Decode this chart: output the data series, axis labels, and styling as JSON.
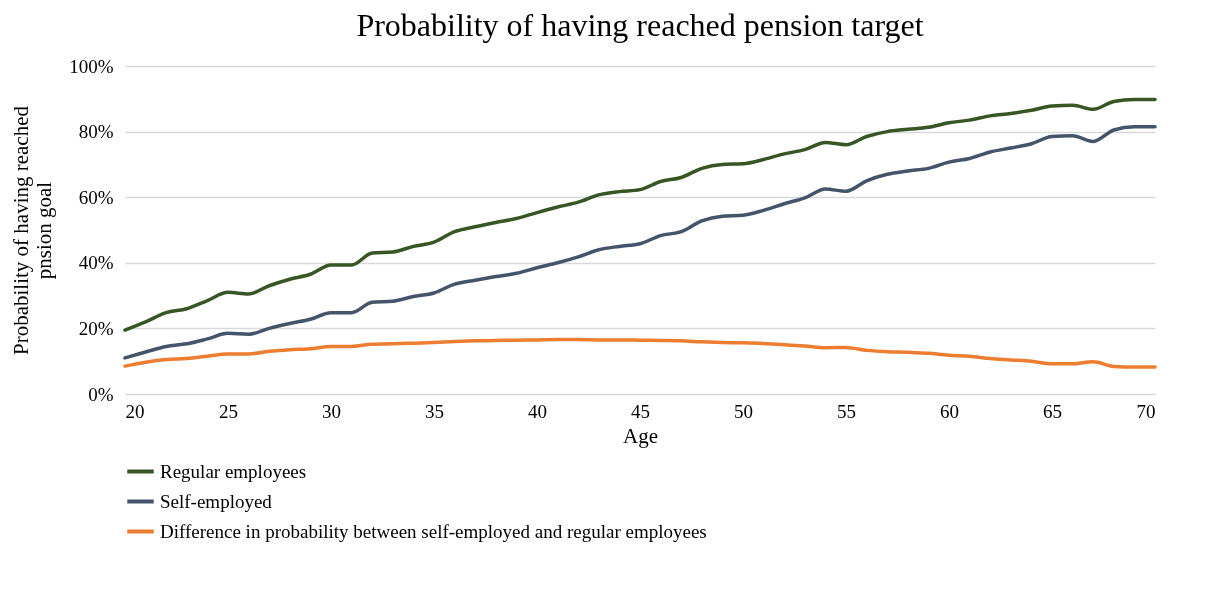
{
  "chart_data": {
    "type": "line",
    "title": "Probability of having reached pension target",
    "xlabel": "Age",
    "ylabel": "Probability of having reached pnsion goal",
    "x": [
      20,
      21,
      22,
      23,
      24,
      25,
      26,
      27,
      28,
      29,
      30,
      31,
      32,
      33,
      34,
      35,
      36,
      37,
      38,
      39,
      40,
      41,
      42,
      43,
      44,
      45,
      46,
      47,
      48,
      49,
      50,
      51,
      52,
      53,
      54,
      55,
      56,
      57,
      58,
      59,
      60,
      61,
      62,
      63,
      64,
      65,
      66,
      67,
      68,
      69,
      70
    ],
    "series": [
      {
        "name": "Regular employees",
        "color": "#375623",
        "values": [
          19.5,
          22,
          24.8,
          26,
          28.5,
          31,
          30.5,
          33,
          35,
          36.5,
          39.3,
          39.3,
          43,
          43.3,
          45,
          46.3,
          49.5,
          51,
          52.3,
          53.5,
          55.3,
          57,
          58.5,
          60.7,
          61.7,
          62.3,
          64.8,
          66,
          68.8,
          70,
          70.2,
          71.5,
          73.2,
          74.5,
          76.7,
          76,
          78.5,
          80,
          80.7,
          81.3,
          82.7,
          83.5,
          84.8,
          85.5,
          86.5,
          87.8,
          88,
          86.8,
          89.2,
          89.8,
          89.8
        ]
      },
      {
        "name": "Self-employed",
        "color": "#44546a",
        "values": [
          11,
          12.8,
          14.5,
          15.3,
          16.8,
          18.5,
          18.2,
          20,
          21.5,
          22.8,
          24.8,
          24.8,
          28,
          28.3,
          29.7,
          30.8,
          33.5,
          34.7,
          35.8,
          36.8,
          38.5,
          40,
          41.8,
          44,
          45,
          45.8,
          48.3,
          49.5,
          52.8,
          54.2,
          54.5,
          56,
          58,
          59.8,
          62.5,
          61.8,
          65,
          67,
          68,
          68.8,
          70.7,
          71.8,
          73.8,
          75,
          76.3,
          78.5,
          78.7,
          77,
          80.5,
          81.5,
          81.5
        ]
      },
      {
        "name": "Difference in probability between self-employed and regular employees",
        "color": "#ed7d31",
        "values": [
          8.5,
          9.7,
          10.5,
          10.8,
          11.5,
          12.2,
          12.2,
          13,
          13.5,
          13.8,
          14.5,
          14.5,
          15.2,
          15.3,
          15.5,
          15.7,
          16,
          16.2,
          16.3,
          16.4,
          16.5,
          16.6,
          16.6,
          16.5,
          16.5,
          16.4,
          16.3,
          16.2,
          15.9,
          15.7,
          15.6,
          15.4,
          15,
          14.6,
          14.1,
          14.2,
          13.3,
          12.9,
          12.7,
          12.4,
          11.8,
          11.5,
          10.8,
          10.4,
          10,
          9.2,
          9.2,
          9.8,
          8.4,
          8.2,
          8.2
        ]
      }
    ],
    "xlim": [
      20,
      70
    ],
    "xticks": [
      20,
      25,
      30,
      35,
      40,
      45,
      50,
      55,
      60,
      65,
      70
    ],
    "ylim": [
      0,
      100
    ],
    "yticks": [
      {
        "value": 0,
        "label": "0%"
      },
      {
        "value": 20,
        "label": "20%"
      },
      {
        "value": 40,
        "label": "40%"
      },
      {
        "value": 60,
        "label": "60%"
      },
      {
        "value": 80,
        "label": "80%"
      },
      {
        "value": 100,
        "label": "100%"
      }
    ],
    "grid": "y",
    "legend": "bottom",
    "marker": "none",
    "line_style": "solid"
  }
}
